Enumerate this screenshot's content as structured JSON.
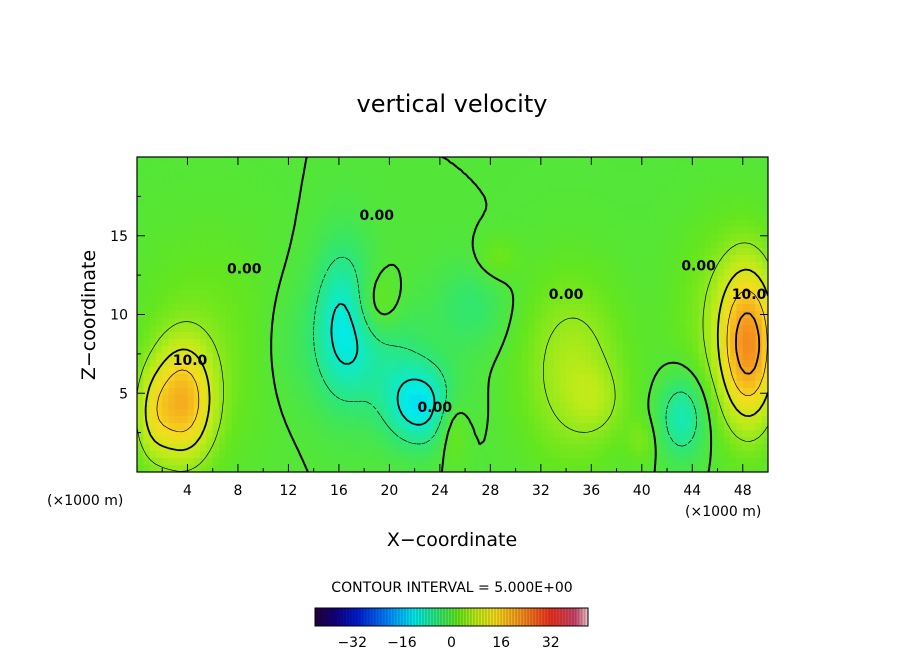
{
  "chart_data": {
    "type": "heatmap",
    "title": "vertical velocity",
    "xlabel": "X−coordinate",
    "ylabel": "Z−coordinate",
    "x_unit": "(×1000 m)",
    "y_unit": "(×1000 m)",
    "xlim": [
      0,
      50
    ],
    "ylim": [
      0,
      20
    ],
    "x_ticks": [
      4,
      8,
      12,
      16,
      20,
      24,
      28,
      32,
      36,
      40,
      44,
      48
    ],
    "x_tick_labels": [
      "4",
      "8",
      "12",
      "16",
      "20",
      "24",
      "28",
      "32",
      "36",
      "40",
      "44",
      "48"
    ],
    "y_ticks": [
      5,
      10,
      15
    ],
    "y_tick_labels": [
      "5",
      "10",
      "15"
    ],
    "contour_interval_text": "CONTOUR INTERVAL = 5.000E+00",
    "colorbar": {
      "range": [
        -44,
        44
      ],
      "ticks": [
        -32,
        -16,
        0,
        16,
        32
      ],
      "tick_labels": [
        "−32",
        "−16",
        "0",
        "16",
        "32"
      ]
    },
    "contour_labels": [
      {
        "text": "10.0",
        "x": 4.2,
        "y": 6.8
      },
      {
        "text": "10.0",
        "x": 48.5,
        "y": 11.0
      },
      {
        "text": "0.00",
        "x": 8.5,
        "y": 12.6
      },
      {
        "text": "0.00",
        "x": 19.0,
        "y": 16.0
      },
      {
        "text": "0.00",
        "x": 34.0,
        "y": 11.0
      },
      {
        "text": "0.00",
        "x": 44.5,
        "y": 12.8
      },
      {
        "text": "0.00",
        "x": 23.6,
        "y": 3.8
      }
    ],
    "features": [
      {
        "sign": "positive",
        "x": 3.5,
        "y": 4.5,
        "max": 18
      },
      {
        "sign": "positive",
        "x": 48.5,
        "y": 8,
        "max": 22
      },
      {
        "sign": "positive",
        "x": 34.5,
        "y": 6,
        "max": 8
      },
      {
        "sign": "positive",
        "x": 19,
        "y": 10.5,
        "max": 6
      },
      {
        "sign": "positive",
        "x": 25,
        "y": 3,
        "max": 6
      },
      {
        "sign": "negative",
        "x": 16.5,
        "y": 9.5,
        "min": -10
      },
      {
        "sign": "negative",
        "x": 22.5,
        "y": 4,
        "min": -12
      },
      {
        "sign": "negative",
        "x": 43,
        "y": 3.5,
        "min": -9
      }
    ]
  }
}
